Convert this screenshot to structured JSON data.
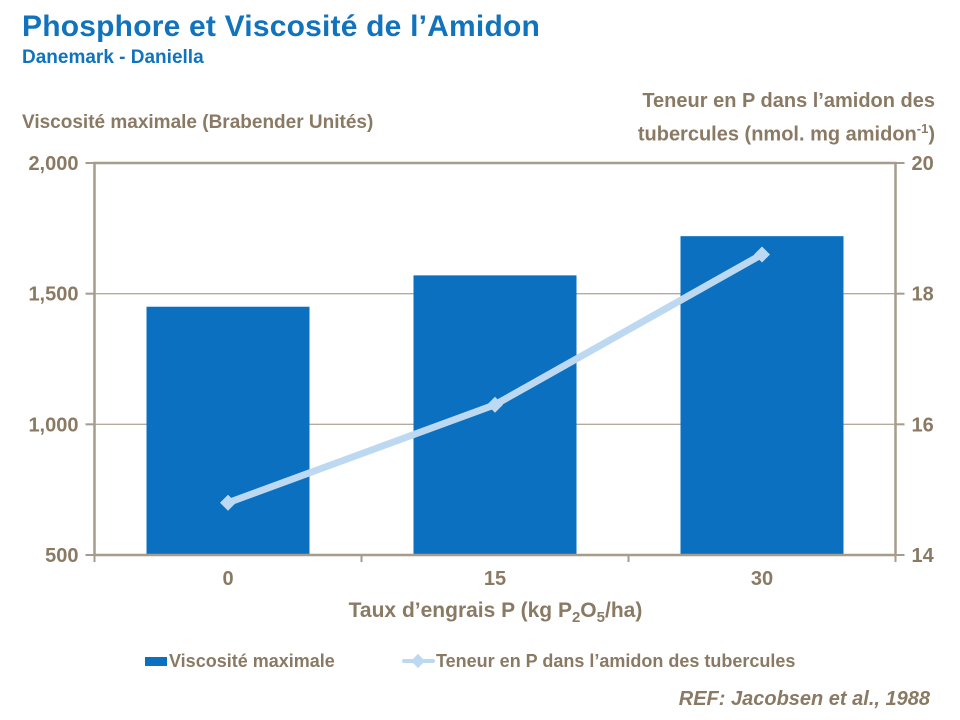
{
  "header": {
    "title": "Phosphore et Viscosité de l’Amidon",
    "subtitle": "Danemark - Daniella"
  },
  "axes": {
    "left_title": "Viscosité maximale (Brabender Unités)",
    "right_title_line1": "Teneur en P dans l’amidon des",
    "right_title_line2": "tubercules (nmol. mg amidon",
    "right_title_sup": "-1",
    "right_title_end": ")",
    "x_title_parts": [
      "Taux d’engrais P (kg P",
      "2",
      "O",
      "5",
      "/ha)"
    ]
  },
  "legend": {
    "bar_label": "Viscosité maximale",
    "line_label": "Teneur en P dans l’amidon des tubercules"
  },
  "footer": {
    "reference": "REF: Jacobsen et al., 1988"
  },
  "colors": {
    "title_blue": "#1273bd",
    "bar_blue": "#0a70bf",
    "line_lightblue": "#bdd9f2",
    "text_taupe": "#8a7a64",
    "axis": "#a79b8c",
    "grid": "#b6ab9b"
  },
  "chart_data": {
    "type": "combo",
    "categories": [
      "0",
      "15",
      "30"
    ],
    "series": [
      {
        "name": "Viscosité maximale",
        "type": "bar",
        "axis": "left",
        "values": [
          1450,
          1570,
          1720
        ]
      },
      {
        "name": "Teneur en P dans l’amidon des tubercules",
        "type": "line",
        "axis": "right",
        "values": [
          14.8,
          16.3,
          18.6
        ]
      }
    ],
    "left_axis": {
      "label": "Viscosité maximale (Brabender Unités)",
      "min": 500,
      "max": 2000,
      "ticks": [
        500,
        1000,
        1500,
        2000
      ],
      "tick_labels": [
        "500",
        "1,000",
        "1,500",
        "2,000"
      ]
    },
    "right_axis": {
      "label": "Teneur en P dans l’amidon des tubercules (nmol. mg amidon-1)",
      "min": 14,
      "max": 20,
      "ticks": [
        14,
        16,
        18,
        20
      ],
      "tick_labels": [
        "14",
        "16",
        "18",
        "20"
      ]
    },
    "x_axis_label": "Taux d’engrais P (kg P2O5/ha)",
    "gridlines": [
      1000,
      1500
    ],
    "grid_on": true,
    "legend_position": "bottom"
  }
}
